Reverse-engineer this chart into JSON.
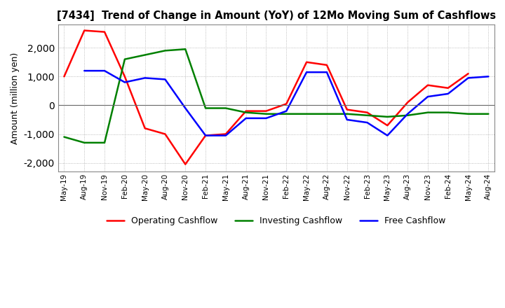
{
  "title": "[7434]  Trend of Change in Amount (YoY) of 12Mo Moving Sum of Cashflows",
  "ylabel": "Amount (million yen)",
  "ylim": [
    -2300,
    2800
  ],
  "yticks": [
    -2000,
    -1000,
    0,
    1000,
    2000
  ],
  "background_color": "#ffffff",
  "grid_color": "#aaaaaa",
  "x_labels": [
    "May-19",
    "Aug-19",
    "Nov-19",
    "Feb-20",
    "May-20",
    "Aug-20",
    "Nov-20",
    "Feb-21",
    "May-21",
    "Aug-21",
    "Nov-21",
    "Feb-22",
    "May-22",
    "Aug-22",
    "Nov-22",
    "Feb-23",
    "May-23",
    "Aug-23",
    "Nov-23",
    "Feb-24",
    "May-24",
    "Aug-24"
  ],
  "operating_cashflow": [
    1000,
    2600,
    2550,
    1000,
    -800,
    -1000,
    -2050,
    -1050,
    -1000,
    -200,
    -200,
    50,
    1500,
    1400,
    -150,
    -250,
    -700,
    100,
    700,
    600,
    1100,
    null
  ],
  "investing_cashflow": [
    -1100,
    -1300,
    -1300,
    1600,
    1750,
    1900,
    1950,
    -100,
    -100,
    -250,
    -300,
    -300,
    -300,
    -300,
    -300,
    -350,
    -400,
    -350,
    -250,
    -250,
    -300,
    -300
  ],
  "free_cashflow": [
    null,
    1200,
    1200,
    800,
    950,
    900,
    -100,
    -1050,
    -1050,
    -450,
    -450,
    -200,
    1150,
    1150,
    -500,
    -600,
    -1050,
    -300,
    300,
    400,
    950,
    1000
  ],
  "op_color": "#ff0000",
  "inv_color": "#008000",
  "free_color": "#0000ff"
}
